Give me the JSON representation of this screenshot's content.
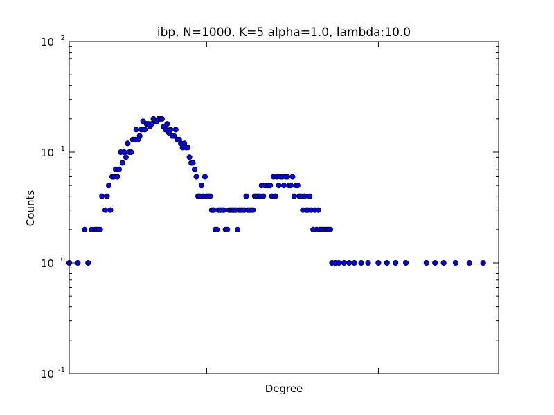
{
  "chart_data": {
    "type": "scatter",
    "title": "ibp, N=1000, K=5 alpha=1.0, lambda:10.0",
    "xlabel": "Degree",
    "ylabel": "Counts",
    "x_scale": "linear",
    "y_scale": "log",
    "xlim": [
      0,
      250
    ],
    "ylim": [
      0.1,
      100
    ],
    "x_ticks_shown": false,
    "y_ticks": [
      {
        "base": "10",
        "exp": "-1",
        "value": 0.1
      },
      {
        "base": "10",
        "exp": "0",
        "value": 1
      },
      {
        "base": "10",
        "exp": "1",
        "value": 10
      },
      {
        "base": "10",
        "exp": "2",
        "value": 100
      }
    ],
    "grid": false,
    "marker_color": "#0000ff",
    "marker_edge_color": "#000000",
    "points": [
      {
        "x": 0,
        "y": 1
      },
      {
        "x": 5,
        "y": 1
      },
      {
        "x": 9,
        "y": 2
      },
      {
        "x": 11,
        "y": 1
      },
      {
        "x": 13,
        "y": 2
      },
      {
        "x": 15,
        "y": 2
      },
      {
        "x": 16,
        "y": 2
      },
      {
        "x": 17,
        "y": 2
      },
      {
        "x": 18,
        "y": 2
      },
      {
        "x": 19,
        "y": 4
      },
      {
        "x": 21,
        "y": 3
      },
      {
        "x": 22,
        "y": 4
      },
      {
        "x": 23,
        "y": 5
      },
      {
        "x": 24,
        "y": 3
      },
      {
        "x": 25,
        "y": 6
      },
      {
        "x": 26,
        "y": 6
      },
      {
        "x": 27,
        "y": 7
      },
      {
        "x": 28,
        "y": 6
      },
      {
        "x": 29,
        "y": 7
      },
      {
        "x": 30,
        "y": 10
      },
      {
        "x": 31,
        "y": 8
      },
      {
        "x": 32,
        "y": 10
      },
      {
        "x": 33,
        "y": 9
      },
      {
        "x": 34,
        "y": 12
      },
      {
        "x": 35,
        "y": 10
      },
      {
        "x": 36,
        "y": 10
      },
      {
        "x": 37,
        "y": 13
      },
      {
        "x": 38,
        "y": 13
      },
      {
        "x": 39,
        "y": 16
      },
      {
        "x": 40,
        "y": 13
      },
      {
        "x": 41,
        "y": 14
      },
      {
        "x": 42,
        "y": 16
      },
      {
        "x": 43,
        "y": 19
      },
      {
        "x": 44,
        "y": 16
      },
      {
        "x": 45,
        "y": 18
      },
      {
        "x": 46,
        "y": 18
      },
      {
        "x": 47,
        "y": 17
      },
      {
        "x": 48,
        "y": 18
      },
      {
        "x": 49,
        "y": 20
      },
      {
        "x": 50,
        "y": 19
      },
      {
        "x": 51,
        "y": 19
      },
      {
        "x": 52,
        "y": 20
      },
      {
        "x": 53,
        "y": 20
      },
      {
        "x": 54,
        "y": 20
      },
      {
        "x": 55,
        "y": 17
      },
      {
        "x": 56,
        "y": 16
      },
      {
        "x": 57,
        "y": 18
      },
      {
        "x": 58,
        "y": 15
      },
      {
        "x": 59,
        "y": 16
      },
      {
        "x": 60,
        "y": 14
      },
      {
        "x": 61,
        "y": 14
      },
      {
        "x": 62,
        "y": 16
      },
      {
        "x": 63,
        "y": 13
      },
      {
        "x": 64,
        "y": 13
      },
      {
        "x": 65,
        "y": 12
      },
      {
        "x": 66,
        "y": 11
      },
      {
        "x": 67,
        "y": 12
      },
      {
        "x": 68,
        "y": 11
      },
      {
        "x": 69,
        "y": 11
      },
      {
        "x": 70,
        "y": 9
      },
      {
        "x": 71,
        "y": 8
      },
      {
        "x": 72,
        "y": 8
      },
      {
        "x": 73,
        "y": 7
      },
      {
        "x": 74,
        "y": 6
      },
      {
        "x": 75,
        "y": 4
      },
      {
        "x": 76,
        "y": 4
      },
      {
        "x": 77,
        "y": 5
      },
      {
        "x": 78,
        "y": 4
      },
      {
        "x": 79,
        "y": 6
      },
      {
        "x": 80,
        "y": 4
      },
      {
        "x": 81,
        "y": 4
      },
      {
        "x": 82,
        "y": 4
      },
      {
        "x": 83,
        "y": 3
      },
      {
        "x": 84,
        "y": 3
      },
      {
        "x": 85,
        "y": 2
      },
      {
        "x": 86,
        "y": 2
      },
      {
        "x": 87,
        "y": 3
      },
      {
        "x": 88,
        "y": 3
      },
      {
        "x": 89,
        "y": 3
      },
      {
        "x": 90,
        "y": 3
      },
      {
        "x": 91,
        "y": 2
      },
      {
        "x": 92,
        "y": 2
      },
      {
        "x": 93,
        "y": 3
      },
      {
        "x": 94,
        "y": 3
      },
      {
        "x": 95,
        "y": 3
      },
      {
        "x": 96,
        "y": 3
      },
      {
        "x": 97,
        "y": 3
      },
      {
        "x": 98,
        "y": 2
      },
      {
        "x": 99,
        "y": 3
      },
      {
        "x": 100,
        "y": 3
      },
      {
        "x": 101,
        "y": 3
      },
      {
        "x": 102,
        "y": 3
      },
      {
        "x": 103,
        "y": 4
      },
      {
        "x": 104,
        "y": 3
      },
      {
        "x": 105,
        "y": 3
      },
      {
        "x": 106,
        "y": 3
      },
      {
        "x": 107,
        "y": 3
      },
      {
        "x": 108,
        "y": 4
      },
      {
        "x": 109,
        "y": 4
      },
      {
        "x": 110,
        "y": 4
      },
      {
        "x": 111,
        "y": 4
      },
      {
        "x": 112,
        "y": 5
      },
      {
        "x": 113,
        "y": 4
      },
      {
        "x": 114,
        "y": 5
      },
      {
        "x": 115,
        "y": 5
      },
      {
        "x": 116,
        "y": 5
      },
      {
        "x": 117,
        "y": 5
      },
      {
        "x": 118,
        "y": 4
      },
      {
        "x": 119,
        "y": 6
      },
      {
        "x": 120,
        "y": 4
      },
      {
        "x": 121,
        "y": 6
      },
      {
        "x": 122,
        "y": 5
      },
      {
        "x": 123,
        "y": 6
      },
      {
        "x": 124,
        "y": 6
      },
      {
        "x": 125,
        "y": 5
      },
      {
        "x": 126,
        "y": 6
      },
      {
        "x": 127,
        "y": 6
      },
      {
        "x": 128,
        "y": 5
      },
      {
        "x": 129,
        "y": 5
      },
      {
        "x": 130,
        "y": 6
      },
      {
        "x": 131,
        "y": 4
      },
      {
        "x": 132,
        "y": 5
      },
      {
        "x": 133,
        "y": 5
      },
      {
        "x": 134,
        "y": 4
      },
      {
        "x": 135,
        "y": 4
      },
      {
        "x": 136,
        "y": 3
      },
      {
        "x": 137,
        "y": 4
      },
      {
        "x": 138,
        "y": 3
      },
      {
        "x": 139,
        "y": 3
      },
      {
        "x": 140,
        "y": 4
      },
      {
        "x": 141,
        "y": 3
      },
      {
        "x": 142,
        "y": 2
      },
      {
        "x": 143,
        "y": 3
      },
      {
        "x": 144,
        "y": 2
      },
      {
        "x": 145,
        "y": 3
      },
      {
        "x": 146,
        "y": 2
      },
      {
        "x": 147,
        "y": 2
      },
      {
        "x": 148,
        "y": 2
      },
      {
        "x": 149,
        "y": 2
      },
      {
        "x": 150,
        "y": 2
      },
      {
        "x": 151,
        "y": 2
      },
      {
        "x": 152,
        "y": 2
      },
      {
        "x": 153,
        "y": 1
      },
      {
        "x": 155,
        "y": 1
      },
      {
        "x": 157,
        "y": 1
      },
      {
        "x": 160,
        "y": 1
      },
      {
        "x": 163,
        "y": 1
      },
      {
        "x": 166,
        "y": 1
      },
      {
        "x": 170,
        "y": 1
      },
      {
        "x": 174,
        "y": 1
      },
      {
        "x": 180,
        "y": 1
      },
      {
        "x": 185,
        "y": 1
      },
      {
        "x": 190,
        "y": 1
      },
      {
        "x": 196,
        "y": 1
      },
      {
        "x": 208,
        "y": 1
      },
      {
        "x": 213,
        "y": 1
      },
      {
        "x": 218,
        "y": 1
      },
      {
        "x": 225,
        "y": 1
      },
      {
        "x": 233,
        "y": 1
      },
      {
        "x": 241,
        "y": 1
      }
    ]
  }
}
